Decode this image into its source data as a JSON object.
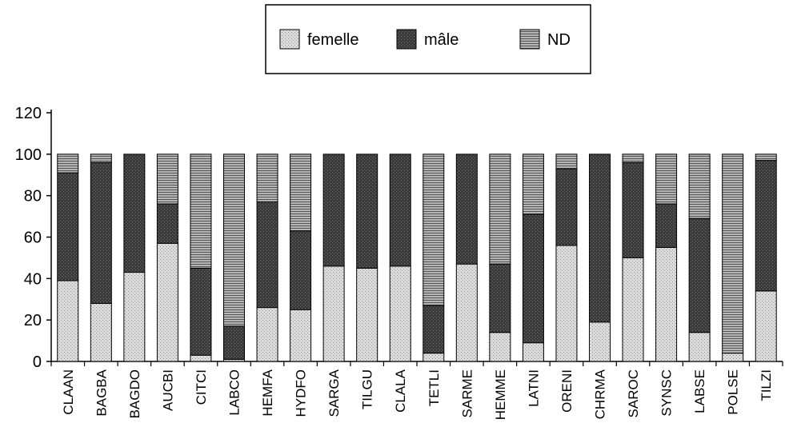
{
  "chart_data": {
    "type": "bar",
    "stacked": true,
    "ylim": [
      0,
      120
    ],
    "yticks": [
      0,
      20,
      40,
      60,
      80,
      100,
      120
    ],
    "grid": false,
    "legend_position": "top-center",
    "categories": [
      "CLAAN",
      "BAGBA",
      "BAGDO",
      "AUCBI",
      "CITCI",
      "LABCO",
      "HEMFA",
      "HYDFO",
      "SARGA",
      "TILGU",
      "CLALA",
      "TETLI",
      "SARME",
      "HEMME",
      "LATNI",
      "ORENI",
      "CHRMA",
      "SAROC",
      "SYNSC",
      "LABSE",
      "POLSE",
      "TILZI"
    ],
    "series": [
      {
        "name": "femelle",
        "values": [
          39,
          28,
          43,
          57,
          3,
          1,
          26,
          25,
          46,
          45,
          46,
          4,
          47,
          14,
          9,
          56,
          19,
          50,
          55,
          14,
          4,
          34
        ]
      },
      {
        "name": "mâle",
        "values": [
          52,
          68,
          57,
          19,
          42,
          16,
          51,
          38,
          54,
          55,
          54,
          23,
          53,
          33,
          62,
          37,
          81,
          46,
          21,
          55,
          0,
          63
        ]
      },
      {
        "name": "ND",
        "values": [
          9,
          4,
          0,
          24,
          55,
          83,
          23,
          37,
          0,
          0,
          0,
          73,
          0,
          53,
          29,
          7,
          0,
          4,
          24,
          31,
          96,
          3
        ]
      }
    ],
    "colors": {
      "femelle": "#cfcfcf",
      "mâle": "#3c3c3c",
      "ND": "#8f8f8f"
    }
  }
}
